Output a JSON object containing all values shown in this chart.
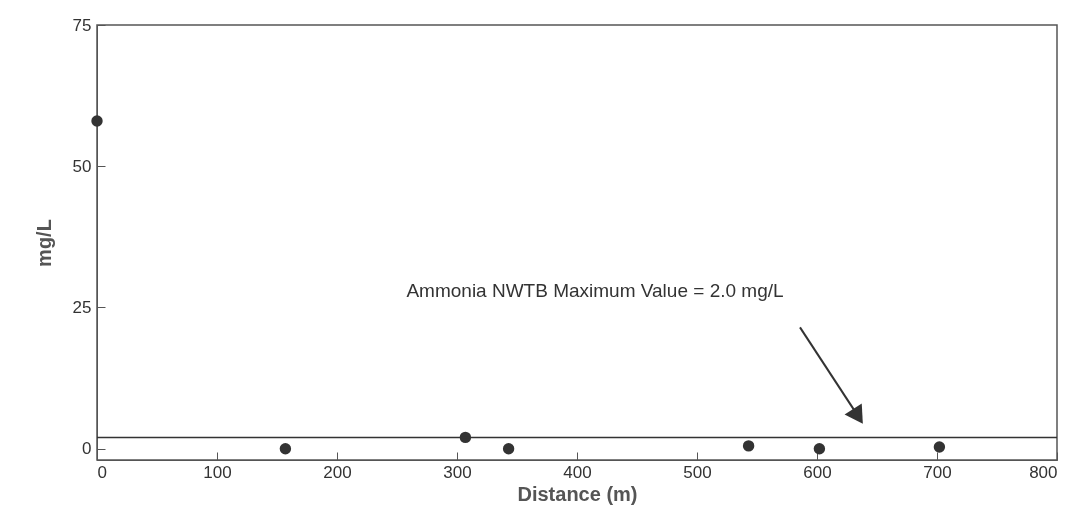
{
  "chart_data": {
    "type": "scatter",
    "xlabel": "Distance (m)",
    "ylabel": "mg/L",
    "x": [
      0,
      157,
      307,
      343,
      543,
      602,
      702
    ],
    "values": [
      58,
      0,
      2,
      0,
      0.5,
      0,
      0.3
    ],
    "color": "#333333",
    "marker": "circle",
    "grid": false,
    "xlim": [
      0,
      800
    ],
    "xticks": [
      0,
      100,
      200,
      300,
      400,
      500,
      600,
      700,
      800
    ],
    "ylim": [
      -2,
      75
    ],
    "yticks": [
      0,
      25,
      50,
      75
    ],
    "ref_lines": [
      {
        "axis": "y",
        "value": 2,
        "color": "#333333",
        "label": "Ammonia NWTB Maximum Value = 2.0 mg/L"
      }
    ]
  }
}
